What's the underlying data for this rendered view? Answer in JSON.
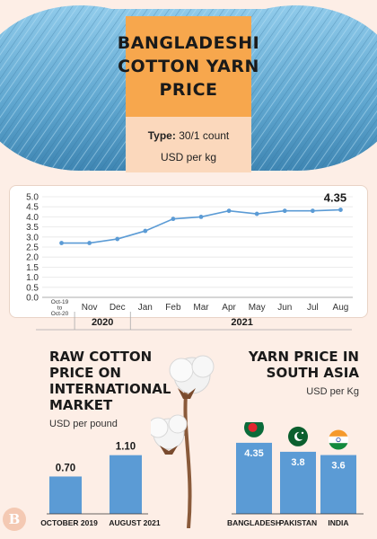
{
  "header": {
    "title": "BANGLADESHI\nCOTTON YARN\nPRICE",
    "type_label": "Type:",
    "type_value": "30/1 count",
    "unit": "USD per kg"
  },
  "chart_data": [
    {
      "type": "line",
      "title": "",
      "unit": "USD per kg",
      "categories": [
        "Oct-19 to Oct-20",
        "Nov",
        "Dec",
        "Jan",
        "Feb",
        "Mar",
        "Apr",
        "May",
        "Jun",
        "Jul",
        "Aug"
      ],
      "category_labels": [
        [
          "Oct-19",
          "to",
          "Oct-20"
        ],
        [
          "Nov"
        ],
        [
          "Dec"
        ],
        [
          "Jan"
        ],
        [
          "Feb"
        ],
        [
          "Mar"
        ],
        [
          "Apr"
        ],
        [
          "May"
        ],
        [
          "Jun"
        ],
        [
          "Jul"
        ],
        [
          "Aug"
        ]
      ],
      "values": [
        2.7,
        2.7,
        2.9,
        3.3,
        3.9,
        4.0,
        4.3,
        4.15,
        4.3,
        4.3,
        4.35
      ],
      "year_groups": [
        {
          "label": "2020",
          "from": 1,
          "to": 2
        },
        {
          "label": "2021",
          "from": 3,
          "to": 10
        }
      ],
      "yticks": [
        "0.0",
        "0.5",
        "1.0",
        "1.5",
        "2.0",
        "2.5",
        "3.0",
        "3.5",
        "4.0",
        "4.5",
        "5.0"
      ],
      "ylim": [
        0,
        5
      ],
      "highlight_label": "4.35",
      "color": "#5b9bd5",
      "grid": true
    },
    {
      "type": "bar",
      "title": "RAW COTTON\nPRICE ON\nINTERNATIONAL\nMARKET",
      "unit": "USD per pound",
      "categories": [
        "OCTOBER 2019",
        "AUGUST 2021"
      ],
      "values": [
        0.7,
        1.1
      ],
      "value_labels": [
        "0.70",
        "1.10"
      ],
      "color": "#5b9bd5"
    },
    {
      "type": "bar",
      "title": "YARN PRICE IN\nSOUTH ASIA",
      "unit": "USD per Kg",
      "categories": [
        "BANGLADESH",
        "PAKISTAN",
        "INDIA"
      ],
      "values": [
        4.35,
        3.8,
        3.6
      ],
      "value_labels": [
        "4.35",
        "3.8",
        "3.6"
      ],
      "flags": [
        "bangladesh-flag",
        "pakistan-flag",
        "india-flag"
      ],
      "color": "#5b9bd5"
    }
  ],
  "logo": {
    "glyph": "B"
  },
  "colors": {
    "accent": "#f7a74d",
    "accent_light": "#fbd8bc",
    "bar": "#5b9bd5",
    "background": "#fdeee6",
    "yarn": "#6fb3d6"
  }
}
